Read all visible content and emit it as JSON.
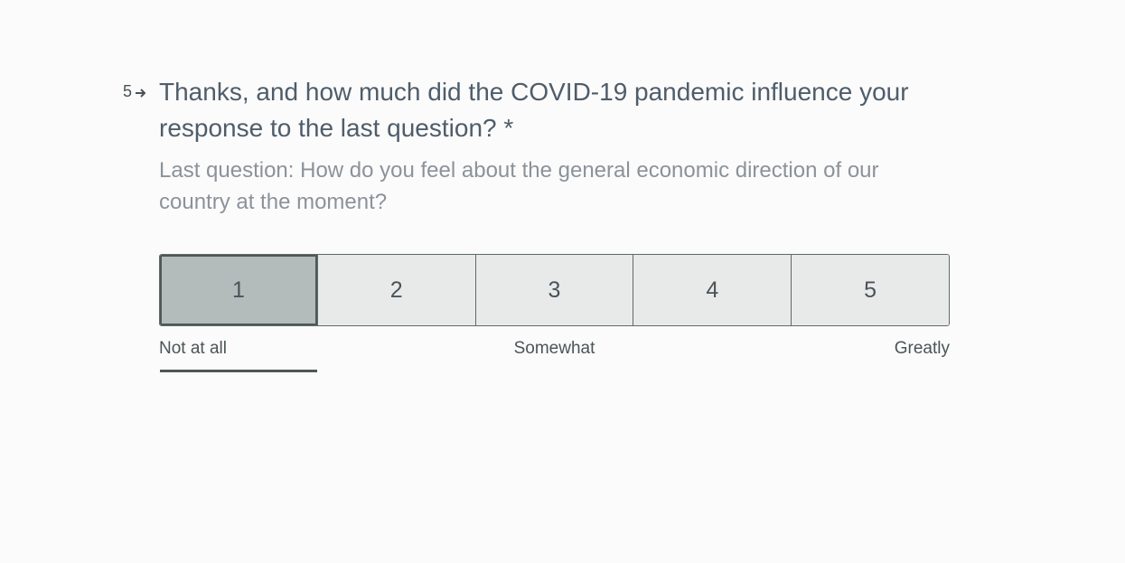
{
  "question": {
    "number": "5",
    "arrow_icon": "arrow-right-icon",
    "title": "Thanks, and how much did the COVID-19 pandemic influence your response to the last question? *",
    "description": "Last question: How do you feel about the general economic direction of our country at the moment?"
  },
  "scale": {
    "options": [
      {
        "label": "1",
        "selected": true
      },
      {
        "label": "2",
        "selected": false
      },
      {
        "label": "3",
        "selected": false
      },
      {
        "label": "4",
        "selected": false
      },
      {
        "label": "5",
        "selected": false
      }
    ],
    "selected_value": "1",
    "label_low": "Not at all",
    "label_mid": "Somewhat",
    "label_high": "Greatly"
  },
  "colors": {
    "background": "#fbfbfb",
    "option_bg": "#e8eae9",
    "option_selected_bg": "#b4bcbb",
    "title": "#4f5d6a",
    "description": "#8c929a"
  }
}
